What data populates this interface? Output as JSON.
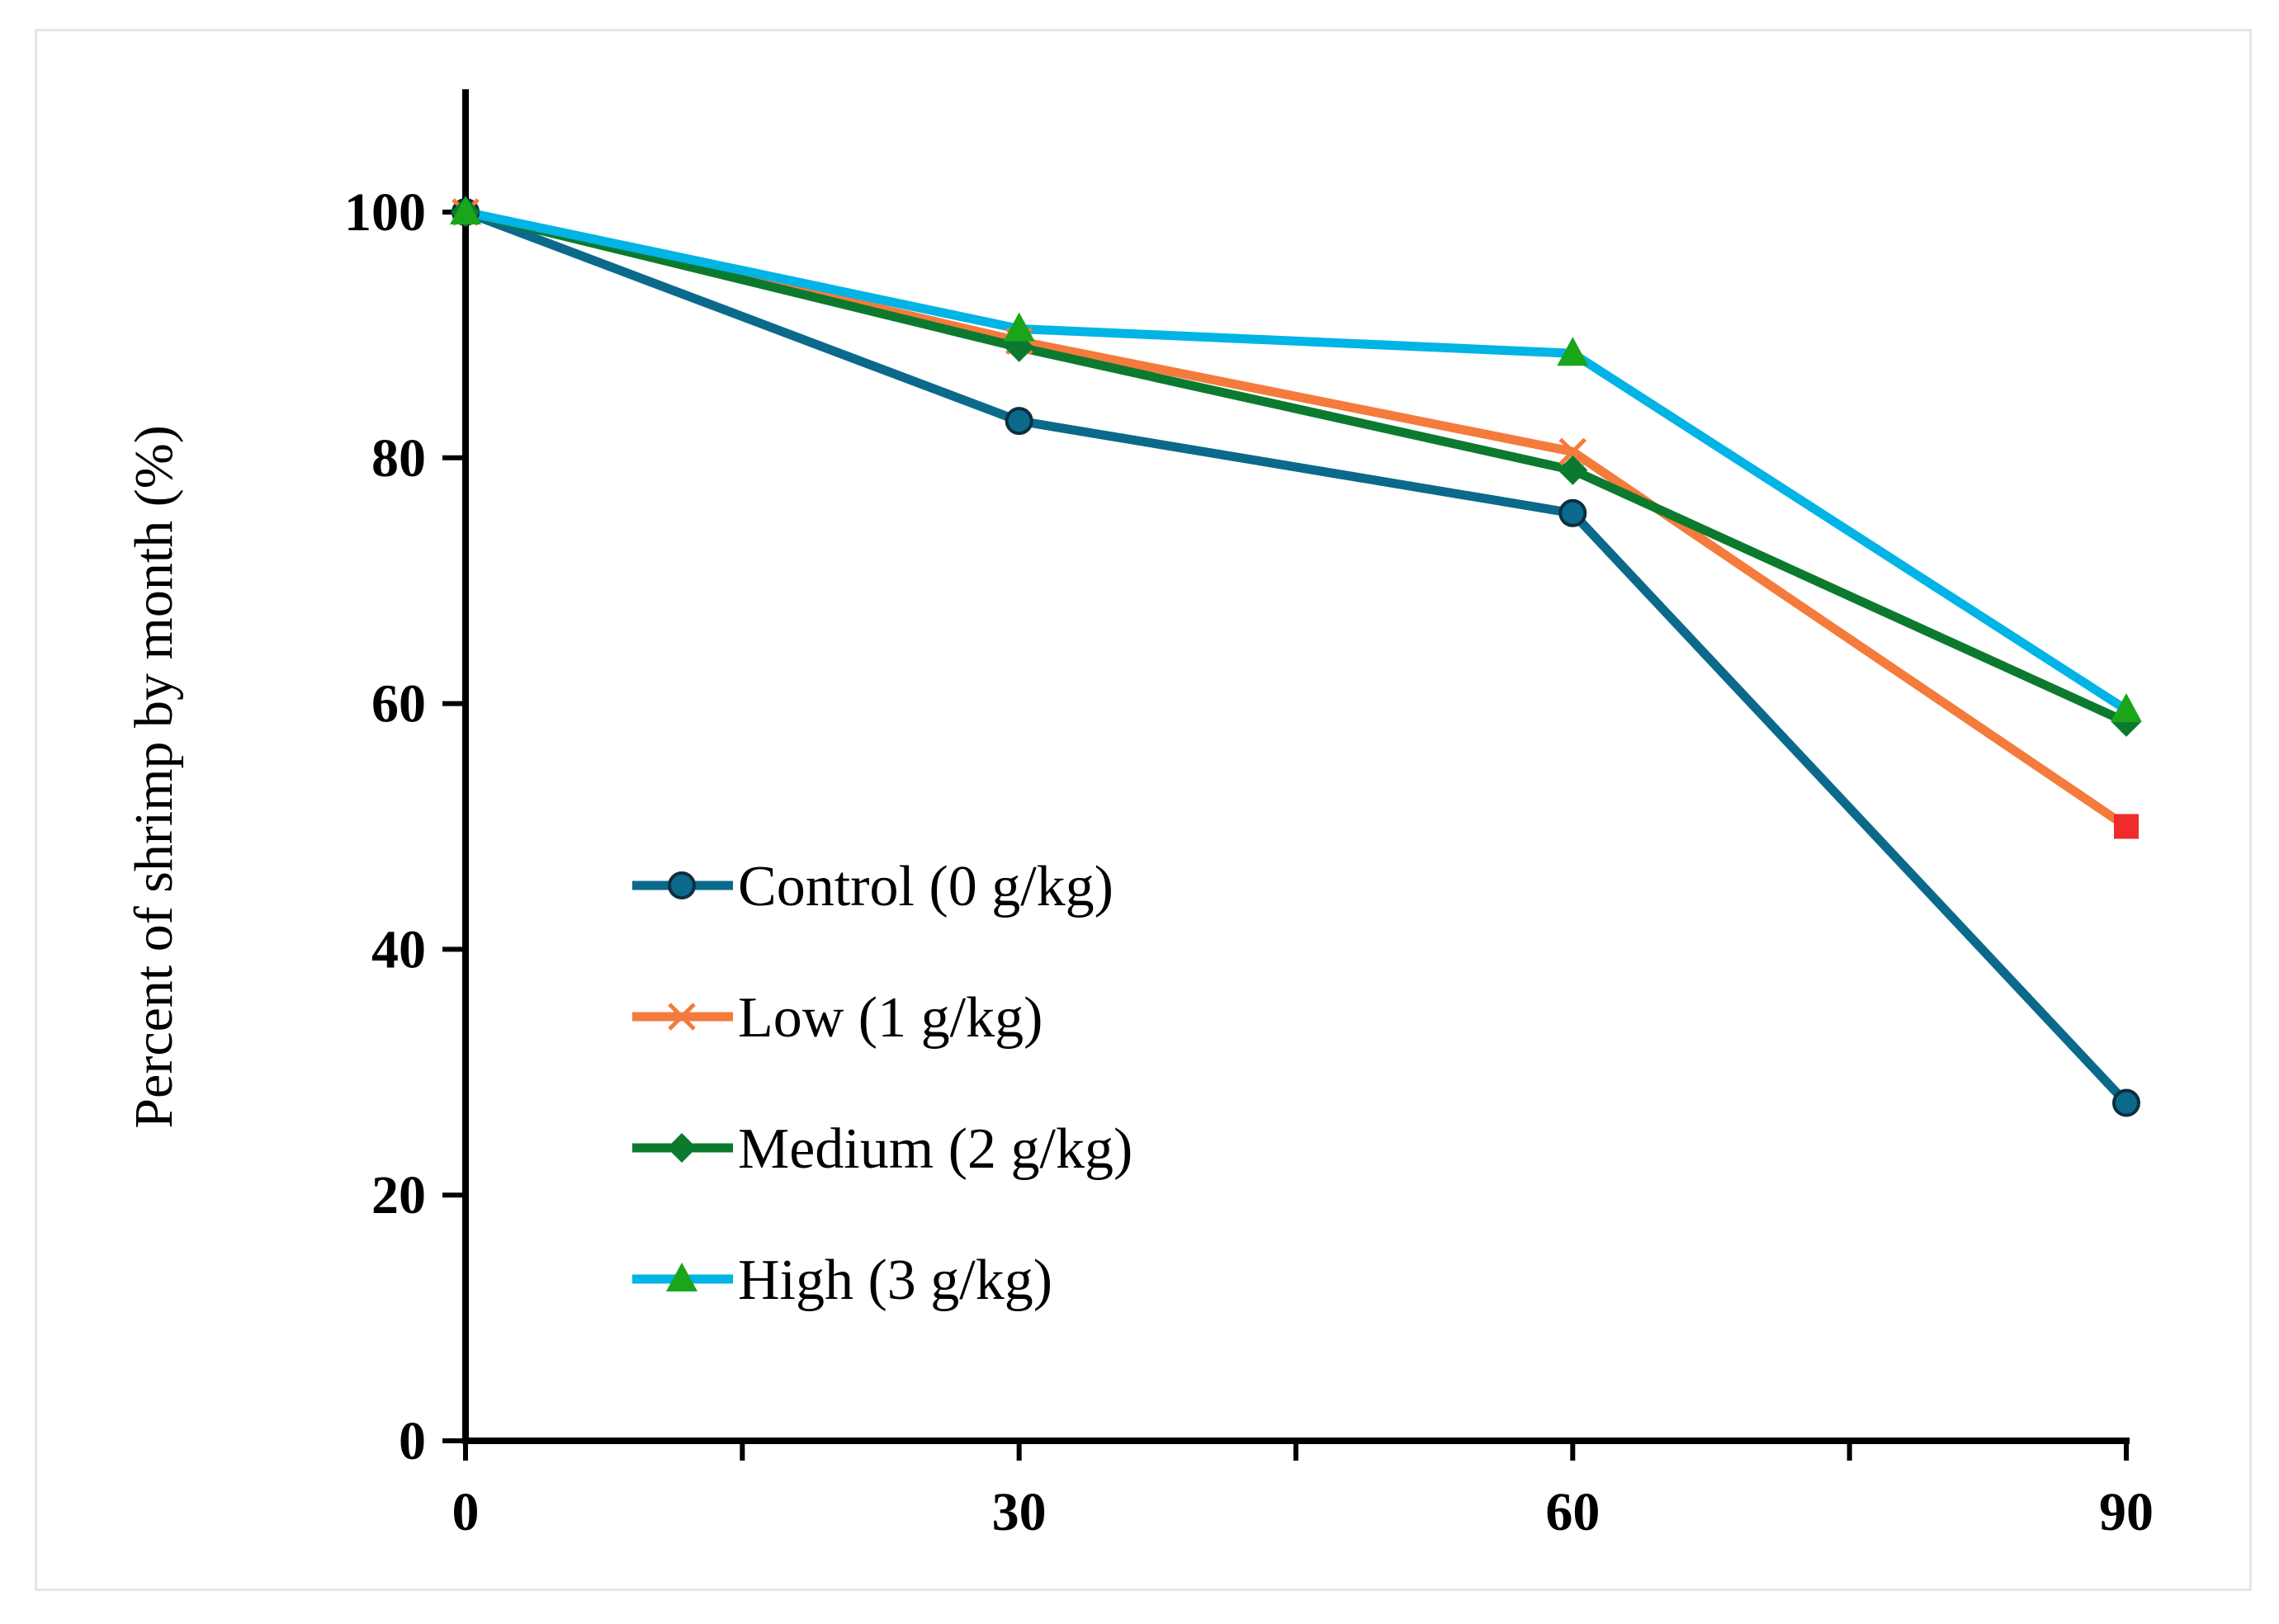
{
  "chart_data": {
    "type": "line",
    "title": "",
    "xlabel": "",
    "ylabel": "Percent of shrimp by month (%)",
    "x": [
      0,
      30,
      60,
      90
    ],
    "xlim": [
      0,
      90
    ],
    "ylim": [
      0,
      110
    ],
    "xticks": [
      0,
      30,
      60,
      90
    ],
    "yticks": [
      0,
      20,
      40,
      60,
      80,
      100
    ],
    "grid": false,
    "legend_position": "lower-left",
    "series": [
      {
        "name": "Control (0 g/kg)",
        "values": [
          100,
          83,
          75.5,
          27.5
        ],
        "color": "#0b6a8c",
        "marker": "circle"
      },
      {
        "name": "Low (1 g/kg)",
        "values": [
          100,
          89.5,
          80.5,
          50
        ],
        "color": "#f47b3c",
        "marker": "x",
        "last_marker": "square",
        "last_marker_color": "#ef2b2b"
      },
      {
        "name": "Medium (2 g/kg)",
        "values": [
          100,
          89,
          79,
          58.5
        ],
        "color": "#0c7a2e",
        "marker": "diamond"
      },
      {
        "name": "High (3 g/kg)",
        "values": [
          100,
          90.5,
          88.5,
          59.5
        ],
        "color": "#00b4e6",
        "marker": "triangle",
        "marker_color": "#1aa51a"
      }
    ]
  }
}
